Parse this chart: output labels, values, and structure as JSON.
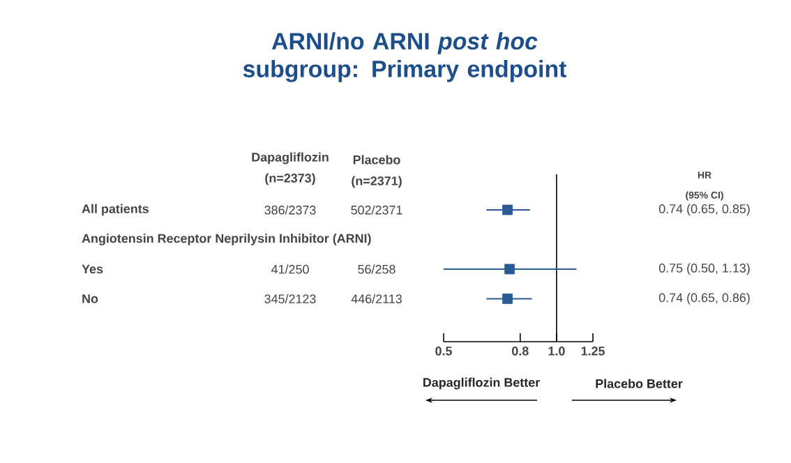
{
  "chart_data": {
    "type": "scatter",
    "orientation": "horizontal",
    "title": "ARNI/no ARNI *post hoc* subgroup: Primary endpoint",
    "categories": [
      "All patients",
      "Angiotensin Receptor Neprilysin Inhibitor (ARNI)",
      "Yes",
      "No"
    ],
    "values": [
      0.74,
      null,
      0.75,
      0.74
    ],
    "errors": [
      [
        0.65,
        0.85
      ],
      null,
      [
        0.5,
        1.13
      ],
      [
        0.65,
        0.86
      ]
    ],
    "color": "#2b5b94",
    "marker": "square",
    "log": "x",
    "xlim": [
      0.5,
      1.25
    ],
    "xticks": [
      0.5,
      0.8,
      {
        "value": 1.0,
        "label": "1.0"
      },
      1.25
    ],
    "ref_lines": [
      {
        "axis": "x",
        "value": 1.0
      }
    ],
    "annotations": [
      "Dapagliflozin",
      "(n=2373)",
      "Placebo",
      "(n=2371)",
      "HR",
      "(95% CI)",
      "386/2373",
      "502/2371",
      "41/250",
      "56/258",
      "345/2123",
      "446/2113",
      "Dapagliflozin Better",
      "Placebo Better",
      "0.74 (0.65, 0.85)",
      "0.75 (0.50, 1.13)",
      "0.74 (0.65, 0.86)"
    ]
  }
}
